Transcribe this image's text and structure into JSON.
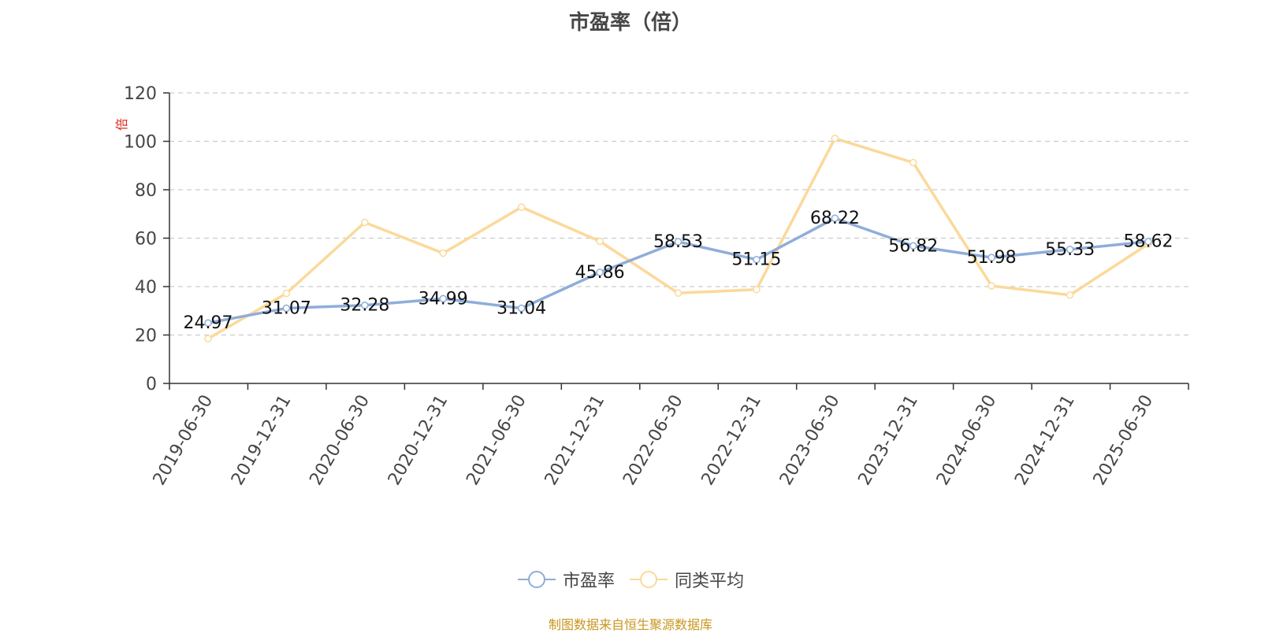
{
  "chart_data": {
    "type": "line",
    "title": "市盈率（倍）",
    "ylabel": "倍",
    "xlabel": "",
    "ylim": [
      0,
      120
    ],
    "yticks": [
      0,
      20,
      40,
      60,
      80,
      100,
      120
    ],
    "grid": true,
    "legend_position": "bottom",
    "categories": [
      "2019-06-30",
      "2019-12-31",
      "2020-06-30",
      "2020-12-31",
      "2021-06-30",
      "2021-12-31",
      "2022-06-30",
      "2022-12-31",
      "2023-06-30",
      "2023-12-31",
      "2024-06-30",
      "2024-12-31",
      "2025-06-30"
    ],
    "series": [
      {
        "name": "市盈率",
        "color": "#8fadd9",
        "values": [
          24.97,
          31.07,
          32.28,
          34.99,
          31.04,
          45.86,
          58.53,
          51.15,
          68.22,
          56.82,
          51.98,
          55.33,
          58.62
        ],
        "show_labels": true
      },
      {
        "name": "同类平均",
        "color": "#fbd99a",
        "values": [
          18.5,
          37.2,
          66.5,
          53.8,
          72.8,
          58.7,
          37.3,
          38.8,
          101.2,
          91.2,
          40.3,
          36.5,
          57.6
        ],
        "show_labels": false
      }
    ]
  },
  "source_note": "制图数据来自恒生聚源数据库",
  "colors": {
    "axis": "#333333",
    "grid": "#cccccc",
    "ylabel": "#e0281e",
    "label_text": "#111111",
    "tick_text": "#464646"
  }
}
